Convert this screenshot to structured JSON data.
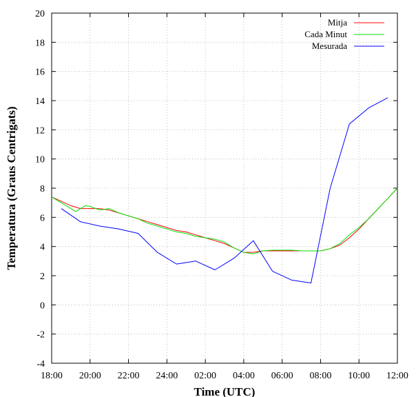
{
  "chart_data": {
    "type": "line",
    "xlabel": "Time (UTC)",
    "ylabel": "Temperatura (Graus Centrigats)",
    "xlim": [
      0,
      18
    ],
    "ylim": [
      -4,
      20
    ],
    "x_ticks": [
      0,
      2,
      4,
      6,
      8,
      10,
      12,
      14,
      16,
      18
    ],
    "x_tick_labels": [
      "18:00",
      "20:00",
      "22:00",
      "24:00",
      "02:00",
      "04:00",
      "06:00",
      "08:00",
      "10:00",
      "12:00"
    ],
    "y_ticks": [
      -4,
      -2,
      0,
      2,
      4,
      6,
      8,
      10,
      12,
      14,
      16,
      18,
      20
    ],
    "grid": true,
    "legend_position": "top-right",
    "series": [
      {
        "name": "Mitja",
        "color": "#ff0000",
        "x": [
          0,
          0.5,
          1,
          1.5,
          2,
          2.5,
          3,
          3.5,
          4,
          4.5,
          5,
          5.5,
          6,
          6.5,
          7,
          7.5,
          8,
          8.5,
          9,
          9.5,
          10,
          10.5,
          11,
          11.5,
          12,
          12.5,
          13,
          13.5,
          14,
          14.5,
          15,
          15.5,
          16,
          16.5,
          17,
          17.5,
          18
        ],
        "y": [
          7.4,
          7.1,
          6.8,
          6.6,
          6.6,
          6.6,
          6.5,
          6.3,
          6.1,
          5.9,
          5.7,
          5.5,
          5.3,
          5.1,
          5.0,
          4.8,
          4.6,
          4.4,
          4.2,
          3.9,
          3.6,
          3.6,
          3.7,
          3.7,
          3.7,
          3.7,
          3.7,
          3.7,
          3.7,
          3.85,
          4.1,
          4.6,
          5.2,
          5.9,
          6.6,
          7.3,
          8.0
        ]
      },
      {
        "name": "Cada Minut",
        "color": "#00e000",
        "x": [
          0,
          0.5,
          1,
          1.25,
          1.5,
          1.75,
          2,
          2.5,
          3,
          3.5,
          4,
          4.5,
          5,
          5.5,
          6,
          6.5,
          7,
          7.5,
          8,
          8.5,
          9,
          9.5,
          10,
          10.5,
          11,
          11.5,
          12,
          12.5,
          13,
          13.5,
          14,
          14.5,
          15,
          15.5,
          16,
          16.5,
          17,
          17.5,
          18
        ],
        "y": [
          7.4,
          7.0,
          6.6,
          6.4,
          6.6,
          6.8,
          6.75,
          6.5,
          6.6,
          6.3,
          6.1,
          5.9,
          5.6,
          5.4,
          5.2,
          5.0,
          4.9,
          4.7,
          4.6,
          4.5,
          4.3,
          3.9,
          3.6,
          3.5,
          3.7,
          3.75,
          3.75,
          3.75,
          3.7,
          3.7,
          3.7,
          3.85,
          4.2,
          4.8,
          5.3,
          5.9,
          6.6,
          7.3,
          8.0
        ]
      },
      {
        "name": "Mesurada",
        "color": "#0000ff",
        "x": [
          0.5,
          1.5,
          2.5,
          3.5,
          4.5,
          5.5,
          6.5,
          7.5,
          8.5,
          9.5,
          10.5,
          11.5,
          12.5,
          13.5,
          14.5,
          15.5,
          16.5,
          17.5
        ],
        "y": [
          6.6,
          5.7,
          5.4,
          5.2,
          4.9,
          3.6,
          2.8,
          3.0,
          2.4,
          3.2,
          4.4,
          2.3,
          1.7,
          1.5,
          8.0,
          12.4,
          13.5,
          14.2
        ]
      }
    ]
  }
}
